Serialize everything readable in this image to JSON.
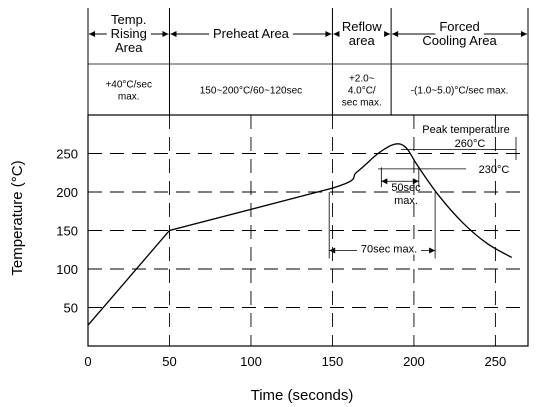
{
  "chart_data": {
    "type": "line",
    "xlabel": "Time (seconds)",
    "ylabel": "Temperature (°C)",
    "xlim": [
      0,
      270
    ],
    "ylim": [
      0,
      300
    ],
    "x_ticks": [
      "0",
      "50",
      "100",
      "150",
      "200",
      "250"
    ],
    "y_ticks": [
      "50",
      "100",
      "150",
      "200",
      "250"
    ],
    "grid": "dashed",
    "series": [
      {
        "x": [
          0,
          50,
          150,
          165,
          178,
          188,
          195,
          202,
          215,
          230,
          245,
          260
        ],
        "y": [
          27,
          150,
          205,
          226,
          250,
          262,
          258,
          235,
          196,
          160,
          133,
          115
        ]
      }
    ],
    "zones": [
      {
        "title": [
          "Temp.",
          "Rising",
          "Area"
        ],
        "rate": [
          "+40°C/sec",
          "max."
        ],
        "x_start": 0,
        "x_end": 50
      },
      {
        "title": [
          "Preheat Area"
        ],
        "rate": [
          "150~200°C/60~120sec"
        ],
        "x_start": 50,
        "x_end": 150
      },
      {
        "title": [
          "Reflow",
          "area"
        ],
        "rate": [
          "+2.0~",
          "4.0°C/",
          "sec max."
        ],
        "x_start": 150,
        "x_end": 186
      },
      {
        "title": [
          "Forced",
          "Cooling Area"
        ],
        "rate": [
          "-(1.0~5.0)°C/sec max."
        ],
        "x_start": 186,
        "x_end": 270
      }
    ],
    "annotations": {
      "peak_label": "Peak temperature",
      "peak_value": "260°C",
      "level_230": "230°C",
      "span_50": [
        "50sec",
        "max."
      ],
      "span_70": "70sec max."
    }
  }
}
